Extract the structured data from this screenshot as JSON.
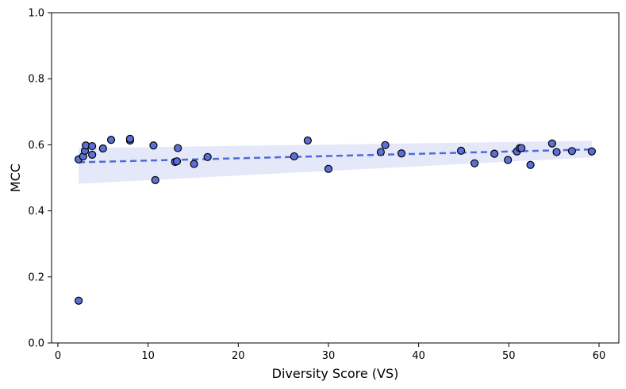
{
  "chart_data": {
    "type": "scatter",
    "xlabel": "Diversity Score (VS)",
    "ylabel": "MCC",
    "xlim": [
      -0.7,
      62.2
    ],
    "ylim": [
      0.0,
      1.0
    ],
    "x_ticks": [
      0,
      10,
      20,
      30,
      40,
      50,
      60
    ],
    "y_ticks": [
      0.0,
      0.2,
      0.4,
      0.6,
      0.8,
      1.0
    ],
    "x_tick_labels": [
      "0",
      "10",
      "20",
      "30",
      "40",
      "50",
      "60"
    ],
    "y_tick_labels": [
      "0.0",
      "0.2",
      "0.4",
      "0.6",
      "0.8",
      "1.0"
    ],
    "grid": false,
    "points": [
      {
        "x": 2.3,
        "y": 0.128
      },
      {
        "x": 2.3,
        "y": 0.556
      },
      {
        "x": 2.8,
        "y": 0.565
      },
      {
        "x": 3.0,
        "y": 0.582
      },
      {
        "x": 3.1,
        "y": 0.598
      },
      {
        "x": 3.8,
        "y": 0.57
      },
      {
        "x": 3.8,
        "y": 0.596
      },
      {
        "x": 5.0,
        "y": 0.589
      },
      {
        "x": 5.9,
        "y": 0.615
      },
      {
        "x": 8.0,
        "y": 0.613
      },
      {
        "x": 8.0,
        "y": 0.618
      },
      {
        "x": 10.6,
        "y": 0.598
      },
      {
        "x": 10.8,
        "y": 0.493
      },
      {
        "x": 13.0,
        "y": 0.548
      },
      {
        "x": 13.2,
        "y": 0.55
      },
      {
        "x": 13.3,
        "y": 0.59
      },
      {
        "x": 15.1,
        "y": 0.542
      },
      {
        "x": 16.6,
        "y": 0.563
      },
      {
        "x": 26.2,
        "y": 0.565
      },
      {
        "x": 27.7,
        "y": 0.613
      },
      {
        "x": 30.0,
        "y": 0.527
      },
      {
        "x": 35.8,
        "y": 0.578
      },
      {
        "x": 36.3,
        "y": 0.599
      },
      {
        "x": 38.1,
        "y": 0.574
      },
      {
        "x": 44.7,
        "y": 0.582
      },
      {
        "x": 46.2,
        "y": 0.544
      },
      {
        "x": 48.4,
        "y": 0.573
      },
      {
        "x": 49.9,
        "y": 0.554
      },
      {
        "x": 50.9,
        "y": 0.58
      },
      {
        "x": 51.2,
        "y": 0.59
      },
      {
        "x": 51.4,
        "y": 0.59
      },
      {
        "x": 52.4,
        "y": 0.539
      },
      {
        "x": 54.8,
        "y": 0.604
      },
      {
        "x": 55.3,
        "y": 0.578
      },
      {
        "x": 57.0,
        "y": 0.581
      },
      {
        "x": 59.2,
        "y": 0.58
      }
    ],
    "trendline": {
      "x": [
        2.3,
        59.2
      ],
      "y": [
        0.547,
        0.586
      ],
      "style": "dashed"
    },
    "confidence_band": {
      "x": [
        2.3,
        59.2
      ],
      "lower": [
        0.482,
        0.562
      ],
      "upper": [
        0.59,
        0.612
      ]
    },
    "colors": {
      "marker_fill": "#5b6fd6",
      "marker_edge": "#000000",
      "trendline": "#4f6bd8",
      "band": "#d3d8f5"
    }
  }
}
